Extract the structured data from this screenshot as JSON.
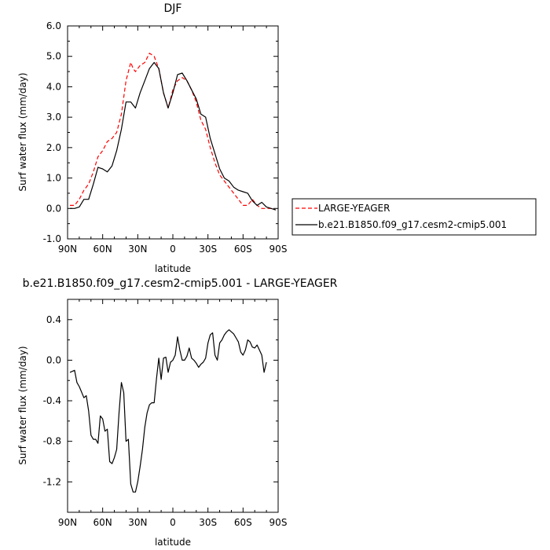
{
  "chart_data": [
    {
      "type": "line",
      "title": "DJF",
      "xlabel": "latitude",
      "ylabel": "Surf water flux (mm/day)",
      "xlim": [
        90,
        -90
      ],
      "ylim": [
        -1.0,
        6.0
      ],
      "x_ticks": [
        90,
        60,
        30,
        0,
        -30,
        -60,
        -90
      ],
      "x_tick_labels": [
        "90N",
        "60N",
        "30N",
        "0",
        "30S",
        "60S",
        "90S"
      ],
      "y_ticks": [
        -1.0,
        0.0,
        1.0,
        2.0,
        3.0,
        4.0,
        5.0,
        6.0
      ],
      "y_tick_labels": [
        "-1.0",
        "0.0",
        "1.0",
        "2.0",
        "3.0",
        "4.0",
        "5.0",
        "6.0"
      ],
      "legend": "outside-right",
      "series": [
        {
          "name": "LARGE-YEAGER",
          "color": "#ff0000",
          "dash": true,
          "x": [
            88,
            84,
            80,
            76,
            72,
            68,
            64,
            60,
            56,
            52,
            48,
            44,
            40,
            38,
            36,
            34,
            32,
            28,
            24,
            20,
            16,
            12,
            8,
            4,
            0,
            -4,
            -8,
            -12,
            -16,
            -20,
            -24,
            -28,
            -32,
            -36,
            -40,
            -44,
            -48,
            -52,
            -56,
            -60,
            -64,
            -68,
            -72,
            -76,
            -80,
            -84,
            -88
          ],
          "y": [
            0.1,
            0.1,
            0.3,
            0.6,
            0.8,
            1.2,
            1.7,
            1.9,
            2.2,
            2.3,
            2.5,
            3.1,
            4.2,
            4.5,
            4.8,
            4.6,
            4.5,
            4.7,
            4.8,
            5.1,
            5.0,
            4.6,
            3.8,
            3.3,
            3.9,
            4.2,
            4.3,
            4.2,
            3.9,
            3.5,
            2.9,
            2.6,
            2.0,
            1.5,
            1.1,
            0.9,
            0.7,
            0.5,
            0.3,
            0.1,
            0.1,
            0.3,
            0.1,
            0.0,
            0.0,
            0.0,
            -0.05
          ]
        },
        {
          "name": "b.e21.B1850.f09_g17.cesm2-cmip5.001",
          "color": "#000000",
          "dash": false,
          "x": [
            88,
            84,
            80,
            76,
            72,
            68,
            64,
            60,
            56,
            52,
            48,
            44,
            40,
            36,
            32,
            28,
            24,
            20,
            16,
            12,
            8,
            4,
            0,
            -4,
            -8,
            -12,
            -16,
            -20,
            -24,
            -28,
            -32,
            -36,
            -40,
            -44,
            -48,
            -52,
            -56,
            -60,
            -64,
            -68,
            -72,
            -76,
            -80,
            -84,
            -88
          ],
          "y": [
            0.0,
            0.0,
            0.05,
            0.3,
            0.3,
            0.8,
            1.35,
            1.3,
            1.2,
            1.4,
            1.9,
            2.6,
            3.5,
            3.5,
            3.3,
            3.8,
            4.2,
            4.6,
            4.8,
            4.6,
            3.8,
            3.3,
            3.8,
            4.4,
            4.45,
            4.2,
            3.9,
            3.6,
            3.1,
            3.0,
            2.3,
            1.8,
            1.3,
            1.0,
            0.9,
            0.7,
            0.6,
            0.55,
            0.5,
            0.25,
            0.1,
            0.2,
            0.05,
            0.0,
            -0.05
          ]
        }
      ]
    },
    {
      "type": "line",
      "title": "b.e21.B1850.f09_g17.cesm2-cmip5.001 - LARGE-YEAGER",
      "xlabel": "latitude",
      "ylabel": "Surf water flux (mm/day)",
      "xlim": [
        90,
        -90
      ],
      "ylim": [
        -1.5,
        0.6
      ],
      "x_ticks": [
        90,
        60,
        30,
        0,
        -30,
        -60,
        -90
      ],
      "x_tick_labels": [
        "90N",
        "60N",
        "30N",
        "0",
        "30S",
        "60S",
        "90S"
      ],
      "y_ticks": [
        -1.2,
        -0.8,
        -0.4,
        0.0,
        0.4
      ],
      "y_tick_labels": [
        "-1.2",
        "-0.8",
        "-0.4",
        "0.0",
        "0.4"
      ],
      "series": [
        {
          "name": "",
          "color": "#000000",
          "dash": false,
          "x": [
            88,
            84,
            82,
            80,
            76,
            74,
            72,
            70,
            68,
            66,
            64,
            62,
            60,
            58,
            56,
            54,
            52,
            50,
            48,
            46,
            44,
            42,
            40,
            38,
            36,
            34,
            32,
            30,
            28,
            26,
            24,
            22,
            20,
            18,
            16,
            14,
            12,
            10,
            8,
            6,
            4,
            2,
            0,
            -2,
            -4,
            -6,
            -8,
            -10,
            -12,
            -14,
            -16,
            -18,
            -20,
            -22,
            -24,
            -26,
            -28,
            -30,
            -32,
            -34,
            -36,
            -38,
            -40,
            -42,
            -44,
            -46,
            -48,
            -50,
            -52,
            -54,
            -56,
            -58,
            -60,
            -62,
            -64,
            -66,
            -68,
            -70,
            -72,
            -74,
            -76,
            -78,
            -80
          ],
          "y": [
            -0.12,
            -0.1,
            -0.22,
            -0.26,
            -0.37,
            -0.35,
            -0.5,
            -0.74,
            -0.78,
            -0.78,
            -0.82,
            -0.55,
            -0.58,
            -0.7,
            -0.68,
            -1.0,
            -1.02,
            -0.96,
            -0.88,
            -0.52,
            -0.22,
            -0.32,
            -0.8,
            -0.78,
            -1.22,
            -1.3,
            -1.3,
            -1.2,
            -1.05,
            -0.88,
            -0.66,
            -0.52,
            -0.44,
            -0.42,
            -0.42,
            -0.18,
            0.02,
            -0.19,
            0.02,
            0.03,
            -0.12,
            -0.02,
            0.0,
            0.05,
            0.23,
            0.1,
            0.0,
            0.0,
            0.04,
            0.12,
            0.02,
            0.0,
            -0.03,
            -0.07,
            -0.04,
            -0.02,
            0.02,
            0.17,
            0.25,
            0.27,
            0.05,
            0.0,
            0.17,
            0.2,
            0.25,
            0.28,
            0.3,
            0.28,
            0.26,
            0.22,
            0.18,
            0.08,
            0.05,
            0.1,
            0.2,
            0.18,
            0.13,
            0.12,
            0.15,
            0.1,
            0.05,
            -0.12,
            -0.02
          ]
        }
      ]
    }
  ]
}
